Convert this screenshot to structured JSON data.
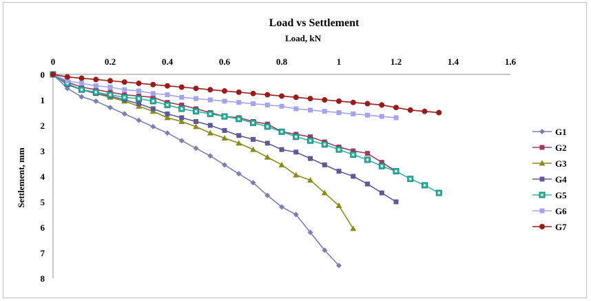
{
  "chart_data": {
    "type": "line",
    "title": "Load vs Settlement",
    "xlabel": "Load, kN",
    "ylabel": "Settlement, mm",
    "xlim": [
      0,
      1.6
    ],
    "ylim": [
      0,
      8
    ],
    "y_axis_inverted": true,
    "x_axis_position": "top",
    "grid": false,
    "legend_position": "right",
    "x_ticks": [
      "0",
      "0.2",
      "0.4",
      "0.6",
      "0.8",
      "1",
      "1.2",
      "1.4",
      "1.6"
    ],
    "y_ticks": [
      "0",
      "1",
      "2",
      "3",
      "4",
      "5",
      "6",
      "7",
      "8"
    ],
    "series": [
      {
        "name": "G1",
        "color": "#7a7fb8",
        "marker": "diamond",
        "x": [
          0,
          0.05,
          0.1,
          0.15,
          0.2,
          0.25,
          0.3,
          0.35,
          0.4,
          0.45,
          0.5,
          0.55,
          0.6,
          0.65,
          0.7,
          0.75,
          0.8,
          0.85,
          0.9,
          0.95,
          1.0
        ],
        "y": [
          0,
          0.55,
          0.88,
          1.05,
          1.3,
          1.55,
          1.8,
          2.05,
          2.3,
          2.6,
          2.9,
          3.2,
          3.55,
          3.9,
          4.25,
          4.75,
          5.2,
          5.5,
          6.2,
          6.9,
          7.5
        ]
      },
      {
        "name": "G2",
        "color": "#9e3a5e",
        "marker": "square",
        "x": [
          0,
          0.05,
          0.1,
          0.15,
          0.2,
          0.25,
          0.3,
          0.35,
          0.4,
          0.45,
          0.5,
          0.55,
          0.6,
          0.65,
          0.7,
          0.75,
          0.8,
          0.85,
          0.9,
          0.95,
          1.0,
          1.05,
          1.1,
          1.15,
          1.2
        ],
        "y": [
          0,
          0.3,
          0.5,
          0.6,
          0.7,
          0.8,
          0.85,
          0.9,
          1.1,
          1.2,
          1.35,
          1.5,
          1.65,
          1.7,
          1.85,
          1.95,
          2.25,
          2.35,
          2.45,
          2.65,
          2.85,
          3.0,
          3.1,
          3.45,
          3.8
        ]
      },
      {
        "name": "G3",
        "color": "#8c8b1a",
        "marker": "triangle",
        "x": [
          0,
          0.05,
          0.1,
          0.15,
          0.2,
          0.25,
          0.3,
          0.35,
          0.4,
          0.45,
          0.5,
          0.55,
          0.6,
          0.65,
          0.7,
          0.75,
          0.8,
          0.85,
          0.9,
          0.95,
          1.0,
          1.05
        ],
        "y": [
          0,
          0.4,
          0.6,
          0.75,
          0.9,
          1.05,
          1.25,
          1.45,
          1.7,
          1.85,
          2.05,
          2.3,
          2.5,
          2.7,
          2.95,
          3.25,
          3.55,
          3.95,
          4.15,
          4.65,
          5.15,
          6.05
        ]
      },
      {
        "name": "G4",
        "color": "#5d5a96",
        "marker": "square",
        "x": [
          0,
          0.05,
          0.1,
          0.15,
          0.2,
          0.25,
          0.3,
          0.35,
          0.4,
          0.45,
          0.5,
          0.55,
          0.6,
          0.65,
          0.7,
          0.75,
          0.8,
          0.85,
          0.9,
          0.95,
          1.0,
          1.05,
          1.1,
          1.15,
          1.2
        ],
        "y": [
          0,
          0.4,
          0.6,
          0.75,
          0.85,
          1.0,
          1.15,
          1.35,
          1.55,
          1.7,
          1.85,
          2.0,
          2.2,
          2.4,
          2.55,
          2.7,
          2.95,
          3.05,
          3.3,
          3.55,
          3.8,
          4.0,
          4.3,
          4.65,
          5.0
        ]
      },
      {
        "name": "G5",
        "color": "#2bb5a4",
        "marker": "square-outline",
        "x": [
          0,
          0.05,
          0.1,
          0.15,
          0.2,
          0.25,
          0.3,
          0.35,
          0.4,
          0.45,
          0.5,
          0.55,
          0.6,
          0.65,
          0.7,
          0.75,
          0.8,
          0.85,
          0.9,
          0.95,
          1.0,
          1.05,
          1.1,
          1.15,
          1.2,
          1.25,
          1.3,
          1.35
        ],
        "y": [
          0,
          0.35,
          0.6,
          0.7,
          0.8,
          0.9,
          0.95,
          1.05,
          1.2,
          1.35,
          1.45,
          1.55,
          1.65,
          1.75,
          1.9,
          2.05,
          2.25,
          2.45,
          2.6,
          2.75,
          2.95,
          3.15,
          3.35,
          3.6,
          3.8,
          4.1,
          4.35,
          4.65
        ]
      },
      {
        "name": "G6",
        "color": "#a3a3f2",
        "marker": "square",
        "x": [
          0,
          0.05,
          0.1,
          0.15,
          0.2,
          0.25,
          0.3,
          0.35,
          0.4,
          0.45,
          0.5,
          0.55,
          0.6,
          0.65,
          0.7,
          0.75,
          0.8,
          0.85,
          0.9,
          0.95,
          1.0,
          1.05,
          1.1,
          1.15,
          1.2
        ],
        "y": [
          0,
          0.25,
          0.35,
          0.45,
          0.5,
          0.6,
          0.65,
          0.75,
          0.8,
          0.9,
          0.95,
          1.0,
          1.05,
          1.1,
          1.15,
          1.2,
          1.25,
          1.35,
          1.4,
          1.45,
          1.5,
          1.55,
          1.6,
          1.65,
          1.7
        ]
      },
      {
        "name": "G7",
        "color": "#9b1b1b",
        "marker": "circle",
        "x": [
          0,
          0.05,
          0.1,
          0.15,
          0.2,
          0.25,
          0.3,
          0.35,
          0.4,
          0.45,
          0.5,
          0.55,
          0.6,
          0.65,
          0.7,
          0.75,
          0.8,
          0.85,
          0.9,
          0.95,
          1.0,
          1.05,
          1.1,
          1.15,
          1.2,
          1.25,
          1.3,
          1.35
        ],
        "y": [
          0,
          0.1,
          0.15,
          0.2,
          0.25,
          0.3,
          0.35,
          0.4,
          0.45,
          0.5,
          0.55,
          0.6,
          0.65,
          0.7,
          0.75,
          0.8,
          0.85,
          0.9,
          0.95,
          1.0,
          1.05,
          1.1,
          1.15,
          1.2,
          1.3,
          1.4,
          1.45,
          1.5
        ]
      }
    ]
  }
}
